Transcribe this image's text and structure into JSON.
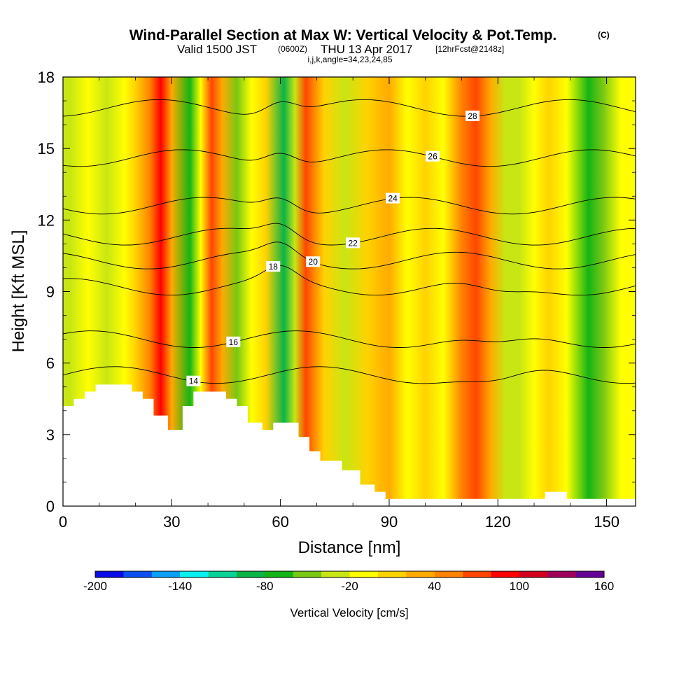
{
  "title": {
    "line1": "Wind-Parallel Section at Max W: Vertical Velocity & Pot.Temp.",
    "line1_units": "(C)",
    "line2_main": "Valid 1500 JST",
    "line2_utc": "(0600Z)",
    "line2_date": "THU 13 Apr 2017",
    "line2_fcst": "[12hrFcst@2148z]",
    "line3": "i,j,k,angle=34,23,24,85"
  },
  "chart_data": {
    "type": "heatmap",
    "xlabel": "Distance [nm]",
    "ylabel": "Height [Kft MSL]",
    "xlim": [
      0,
      158
    ],
    "ylim": [
      0,
      18
    ],
    "x_ticks": [
      0,
      30,
      60,
      90,
      120,
      150
    ],
    "y_ticks": [
      0,
      3,
      6,
      9,
      12,
      15,
      18
    ],
    "colorbar": {
      "label": "Vertical Velocity [cm/s]",
      "min": -200,
      "max": 160,
      "step": 20,
      "tick_values": [
        -200,
        -140,
        -80,
        -20,
        40,
        100,
        160
      ],
      "colors": [
        "#0a0ae6",
        "#0a50f0",
        "#0aa0f5",
        "#0af0f0",
        "#0ad296",
        "#0ab446",
        "#14b414",
        "#78c814",
        "#c8e614",
        "#ffff00",
        "#ffd200",
        "#ffaa00",
        "#ff8200",
        "#ff4600",
        "#ff0000",
        "#d2001e",
        "#a0005a",
        "#640096"
      ]
    },
    "vertical_velocity_columns": [
      {
        "x": 2,
        "value": -30
      },
      {
        "x": 7,
        "value": -5
      },
      {
        "x": 12,
        "value": -35
      },
      {
        "x": 17,
        "value": -10
      },
      {
        "x": 20,
        "value": 10
      },
      {
        "x": 24,
        "value": 50
      },
      {
        "x": 27,
        "value": 90
      },
      {
        "x": 30,
        "value": 20
      },
      {
        "x": 35,
        "value": -70
      },
      {
        "x": 38,
        "value": -20
      },
      {
        "x": 41,
        "value": 60
      },
      {
        "x": 44,
        "value": 20
      },
      {
        "x": 48,
        "value": -50
      },
      {
        "x": 52,
        "value": -10
      },
      {
        "x": 56,
        "value": 10
      },
      {
        "x": 61,
        "value": -100
      },
      {
        "x": 64,
        "value": -40
      },
      {
        "x": 67,
        "value": 60
      },
      {
        "x": 72,
        "value": 0
      },
      {
        "x": 78,
        "value": -30
      },
      {
        "x": 84,
        "value": 10
      },
      {
        "x": 90,
        "value": 30
      },
      {
        "x": 95,
        "value": -5
      },
      {
        "x": 100,
        "value": 10
      },
      {
        "x": 105,
        "value": -20
      },
      {
        "x": 110,
        "value": 40
      },
      {
        "x": 114,
        "value": 70
      },
      {
        "x": 118,
        "value": 30
      },
      {
        "x": 122,
        "value": -30
      },
      {
        "x": 126,
        "value": -40
      },
      {
        "x": 130,
        "value": -10
      },
      {
        "x": 134,
        "value": 10
      },
      {
        "x": 139,
        "value": -20
      },
      {
        "x": 145,
        "value": -80
      },
      {
        "x": 149,
        "value": -50
      },
      {
        "x": 154,
        "value": -20
      }
    ],
    "potential_temperature_contours": [
      {
        "label": "14",
        "base_height": 5.5
      },
      {
        "label": "16",
        "base_height": 7.0
      },
      {
        "label": "18",
        "base_height": 9.2
      },
      {
        "label": "20",
        "base_height": 10.3
      },
      {
        "label": "22",
        "base_height": 11.3
      },
      {
        "label": "24",
        "base_height": 12.6
      },
      {
        "label": "26",
        "base_height": 14.6
      },
      {
        "label": "28",
        "base_height": 16.7
      }
    ],
    "terrain": [
      {
        "x": 0,
        "height": 4.2
      },
      {
        "x": 3,
        "height": 4.5
      },
      {
        "x": 6,
        "height": 4.8
      },
      {
        "x": 9,
        "height": 5.1
      },
      {
        "x": 19,
        "height": 4.8
      },
      {
        "x": 22,
        "height": 4.5
      },
      {
        "x": 25,
        "height": 3.8
      },
      {
        "x": 29,
        "height": 3.2
      },
      {
        "x": 33,
        "height": 4.2
      },
      {
        "x": 36,
        "height": 4.8
      },
      {
        "x": 45,
        "height": 4.5
      },
      {
        "x": 48,
        "height": 4.2
      },
      {
        "x": 51,
        "height": 3.5
      },
      {
        "x": 55,
        "height": 3.2
      },
      {
        "x": 58,
        "height": 3.5
      },
      {
        "x": 65,
        "height": 2.9
      },
      {
        "x": 68,
        "height": 2.3
      },
      {
        "x": 71,
        "height": 1.9
      },
      {
        "x": 77,
        "height": 1.5
      },
      {
        "x": 82,
        "height": 0.9
      },
      {
        "x": 86,
        "height": 0.6
      },
      {
        "x": 89,
        "height": 0.3
      },
      {
        "x": 133,
        "height": 0.6
      },
      {
        "x": 139,
        "height": 0.3
      },
      {
        "x": 158,
        "height": 0.3
      }
    ]
  }
}
